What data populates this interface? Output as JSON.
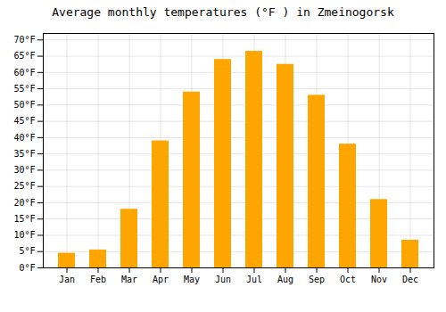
{
  "chart_data": {
    "type": "bar",
    "title": "Average monthly temperatures (°F ) in Zmeinogorsk",
    "categories": [
      "Jan",
      "Feb",
      "Mar",
      "Apr",
      "May",
      "Jun",
      "Jul",
      "Aug",
      "Sep",
      "Oct",
      "Nov",
      "Dec"
    ],
    "values": [
      4.5,
      5.5,
      18,
      39,
      54,
      64,
      66.5,
      62.5,
      53,
      38,
      21,
      8.5
    ],
    "color": "#FFA500",
    "ylim": [
      0,
      72
    ],
    "yticks": [
      {
        "value": 0,
        "label": "0°F"
      },
      {
        "value": 5,
        "label": "5°F"
      },
      {
        "value": 10,
        "label": "10°F"
      },
      {
        "value": 15,
        "label": "15°F"
      },
      {
        "value": 20,
        "label": "20°F"
      },
      {
        "value": 25,
        "label": "25°F"
      },
      {
        "value": 30,
        "label": "30°F"
      },
      {
        "value": 35,
        "label": "35°F"
      },
      {
        "value": 40,
        "label": "40°F"
      },
      {
        "value": 45,
        "label": "45°F"
      },
      {
        "value": 50,
        "label": "50°F"
      },
      {
        "value": 55,
        "label": "55°F"
      },
      {
        "value": 60,
        "label": "60°F"
      },
      {
        "value": 65,
        "label": "65°F"
      },
      {
        "value": 70,
        "label": "70°F"
      }
    ],
    "grid": true
  }
}
